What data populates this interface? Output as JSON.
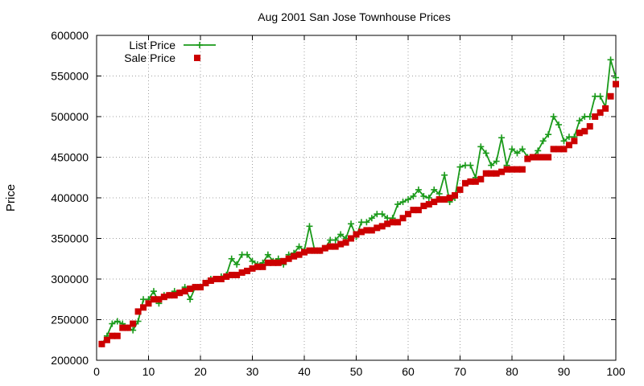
{
  "chart_data": {
    "type": "line",
    "title": "Aug 2001 San Jose Townhouse Prices",
    "xlabel": "",
    "ylabel": "Price",
    "xlim": [
      0,
      100
    ],
    "ylim": [
      200000,
      600000
    ],
    "xticks": [
      0,
      10,
      20,
      30,
      40,
      50,
      60,
      70,
      80,
      90,
      100
    ],
    "yticks": [
      200000,
      250000,
      300000,
      350000,
      400000,
      450000,
      500000,
      550000,
      600000
    ],
    "grid": true,
    "legend_position": "top-left",
    "series": [
      {
        "name": "List Price",
        "style": "line-with-plus-markers",
        "color": "#1a9a1a",
        "x": [
          1,
          2,
          3,
          4,
          5,
          6,
          7,
          8,
          9,
          10,
          11,
          12,
          13,
          14,
          15,
          16,
          17,
          18,
          19,
          20,
          21,
          22,
          23,
          24,
          25,
          26,
          27,
          28,
          29,
          30,
          31,
          32,
          33,
          34,
          35,
          36,
          37,
          38,
          39,
          40,
          41,
          42,
          43,
          44,
          45,
          46,
          47,
          48,
          49,
          50,
          51,
          52,
          53,
          54,
          55,
          56,
          57,
          58,
          59,
          60,
          61,
          62,
          63,
          64,
          65,
          66,
          67,
          68,
          69,
          70,
          71,
          72,
          73,
          74,
          75,
          76,
          77,
          78,
          79,
          80,
          81,
          82,
          83,
          84,
          85,
          86,
          87,
          88,
          89,
          90,
          91,
          92,
          93,
          94,
          95,
          96,
          97,
          98,
          99,
          100
        ],
        "values": [
          220000,
          230000,
          245000,
          248000,
          245000,
          240000,
          237000,
          248000,
          275000,
          275000,
          285000,
          270000,
          280000,
          280000,
          285000,
          283000,
          290000,
          275000,
          290000,
          290000,
          295000,
          300000,
          300000,
          303000,
          305000,
          325000,
          318000,
          330000,
          330000,
          322000,
          318000,
          320000,
          330000,
          322000,
          325000,
          318000,
          330000,
          332000,
          340000,
          335000,
          365000,
          335000,
          335000,
          338000,
          348000,
          348000,
          355000,
          350000,
          368000,
          352000,
          370000,
          370000,
          375000,
          380000,
          380000,
          375000,
          375000,
          392000,
          395000,
          398000,
          402000,
          410000,
          402000,
          400000,
          410000,
          405000,
          428000,
          395000,
          400000,
          438000,
          440000,
          440000,
          425000,
          463000,
          455000,
          440000,
          445000,
          474000,
          440000,
          460000,
          455000,
          460000,
          450000,
          450000,
          458000,
          470000,
          478000,
          500000,
          490000,
          470000,
          475000,
          475000,
          495000,
          500000,
          500000,
          525000,
          525000,
          512000,
          570000,
          548000
        ]
      },
      {
        "name": "Sale Price",
        "style": "square-markers",
        "color": "#cc0000",
        "x": [
          1,
          2,
          3,
          4,
          5,
          6,
          7,
          8,
          9,
          10,
          11,
          12,
          13,
          14,
          15,
          16,
          17,
          18,
          19,
          20,
          21,
          22,
          23,
          24,
          25,
          26,
          27,
          28,
          29,
          30,
          31,
          32,
          33,
          34,
          35,
          36,
          37,
          38,
          39,
          40,
          41,
          42,
          43,
          44,
          45,
          46,
          47,
          48,
          49,
          50,
          51,
          52,
          53,
          54,
          55,
          56,
          57,
          58,
          59,
          60,
          61,
          62,
          63,
          64,
          65,
          66,
          67,
          68,
          69,
          70,
          71,
          72,
          73,
          74,
          75,
          76,
          77,
          78,
          79,
          80,
          81,
          82,
          83,
          84,
          85,
          86,
          87,
          88,
          89,
          90,
          91,
          92,
          93,
          94,
          95,
          96,
          97,
          98,
          99,
          100
        ],
        "values": [
          220000,
          225000,
          230000,
          230000,
          240000,
          240000,
          245000,
          260000,
          265000,
          270000,
          275000,
          275000,
          278000,
          280000,
          280000,
          283000,
          285000,
          288000,
          290000,
          290000,
          295000,
          298000,
          300000,
          300000,
          303000,
          305000,
          305000,
          308000,
          310000,
          313000,
          315000,
          315000,
          320000,
          320000,
          320000,
          322000,
          325000,
          328000,
          330000,
          333000,
          335000,
          335000,
          335000,
          338000,
          340000,
          340000,
          343000,
          345000,
          350000,
          355000,
          358000,
          360000,
          360000,
          363000,
          365000,
          368000,
          370000,
          370000,
          375000,
          380000,
          385000,
          385000,
          390000,
          392000,
          395000,
          398000,
          398000,
          400000,
          403000,
          410000,
          418000,
          420000,
          420000,
          423000,
          430000,
          430000,
          430000,
          432000,
          435000,
          435000,
          435000,
          435000,
          448000,
          450000,
          450000,
          450000,
          450000,
          460000,
          460000,
          460000,
          465000,
          470000,
          480000,
          482000,
          488000,
          500000,
          505000,
          510000,
          525000,
          540000
        ]
      }
    ]
  }
}
